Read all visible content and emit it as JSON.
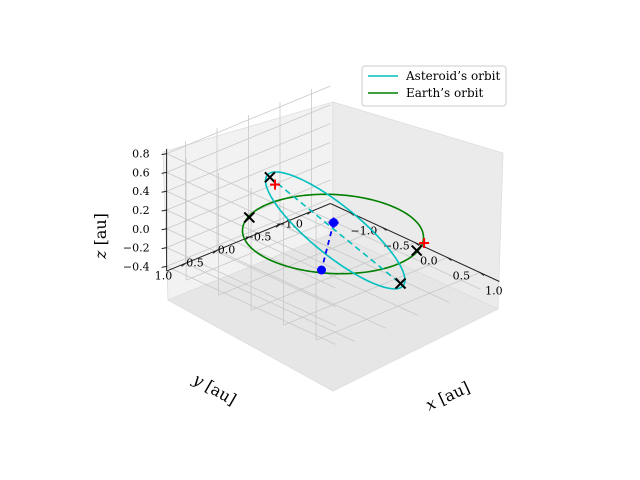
{
  "chart_data": {
    "type": "line3d",
    "title": "",
    "xlabel": "$x$ [au]",
    "ylabel": "$y$ [au]",
    "zlabel": "$z$ [au]",
    "xlabel_text": "x [au]",
    "ylabel_text": "y [au]",
    "zlabel_text": "z [au]",
    "xlim": [
      -1.3,
      1.3
    ],
    "ylim": [
      -1.3,
      1.3
    ],
    "zlim": [
      -0.45,
      0.85
    ],
    "xticks": [
      "−1.0",
      "−0.5",
      "0.0",
      "0.5",
      "1.0"
    ],
    "xtick_values": [
      -1.0,
      -0.5,
      0.0,
      0.5,
      1.0
    ],
    "yticks": [
      "−1.0",
      "−0.5",
      "0.0",
      "0.5",
      "1.0"
    ],
    "ytick_values": [
      -1.0,
      -0.5,
      0.0,
      0.5,
      1.0
    ],
    "zticks": [
      "−0.4",
      "−0.2",
      "0.0",
      "0.2",
      "0.4",
      "0.6",
      "0.8"
    ],
    "ztick_values": [
      -0.4,
      -0.2,
      0.0,
      0.2,
      0.4,
      0.6,
      0.8
    ],
    "grid": true,
    "legend_position": "top-right",
    "series": [
      {
        "name": "Asteroid’s orbit",
        "color": "#00bfbf",
        "kind": "ellipse",
        "semi_major_axis": 1.35,
        "eccentricity": 0.4,
        "inclination_deg": 40,
        "ascending_node_deg": 180,
        "argument_of_periapsis_deg": 45
      },
      {
        "name": "Earth’s orbit",
        "color": "#008000",
        "kind": "circle",
        "radius": 1.0
      }
    ],
    "line_of_nodes": {
      "color": "#00bfbf",
      "style": "dashed",
      "endpoints": [
        [
          -0.05,
          0.95,
          0.85
        ],
        [
          0.7,
          -0.35,
          -0.4
        ]
      ]
    },
    "markers": {
      "black_x": [
        [
          -0.05,
          0.95,
          0.85
        ],
        [
          0.7,
          -0.35,
          -0.4
        ],
        [
          -0.9,
          0.4,
          0.0
        ],
        [
          0.9,
          -0.4,
          0.0
        ]
      ],
      "red_plus": [
        [
          0.0,
          0.92,
          0.78
        ],
        [
          0.82,
          -0.6,
          0.0
        ],
        [
          0.3,
          0.3,
          0.3
        ]
      ],
      "blue_points": [
        [
          0.3,
          0.3,
          0.3
        ],
        [
          0.55,
          0.75,
          0.0
        ]
      ],
      "blue_plus": [
        [
          0.3,
          0.3,
          0.3
        ]
      ],
      "blue_dashed": [
        [
          0.3,
          0.3,
          0.3
        ],
        [
          0.55,
          0.75,
          0.0
        ]
      ]
    },
    "colors": {
      "asteroid": "#00bfbf",
      "earth": "#008000",
      "x_marker": "#000000",
      "plus_marker": "#ff0000",
      "point": "#0000ff"
    }
  }
}
